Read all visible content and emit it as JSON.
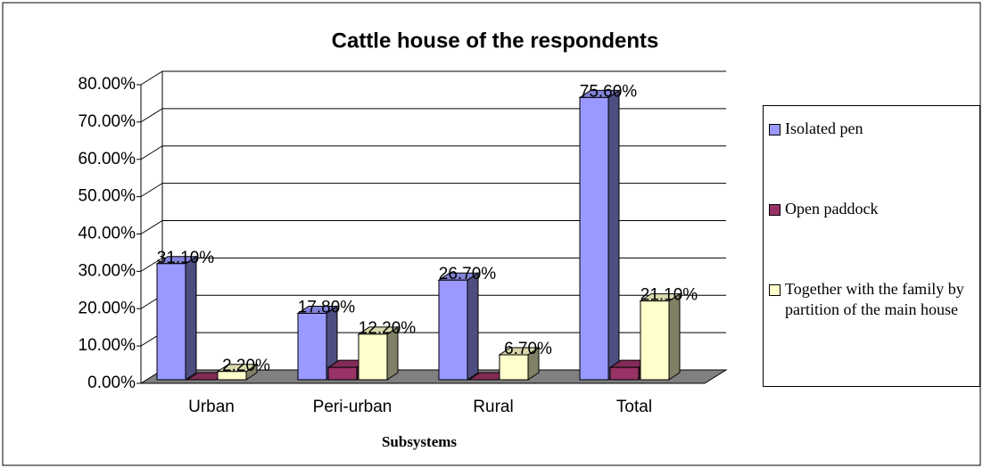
{
  "chart_data": {
    "type": "bar3d",
    "title": "Cattle house of the respondents",
    "x_label": "Subsystems",
    "categories": [
      "Urban",
      "Peri-urban",
      "Rural",
      "Total"
    ],
    "series": [
      {
        "name": "Isolated pen",
        "color": "#9999ff",
        "values": [
          31.1,
          17.8,
          26.7,
          75.6
        ],
        "value_labels": [
          "31.10%",
          "17.80%",
          "26.70%",
          "75.60%"
        ]
      },
      {
        "name": "Open paddock",
        "color": "#993366",
        "values": [
          0,
          3.3,
          0,
          3.3
        ]
      },
      {
        "name": "Together with the family by partition of the main house",
        "color": "#ffffcc",
        "values": [
          2.2,
          12.2,
          6.7,
          21.1
        ],
        "value_labels": [
          "2.20%",
          "12.20%",
          "6.70%",
          "21.10%"
        ]
      }
    ],
    "ylim": [
      0,
      80
    ],
    "yticks": [
      {
        "value": 0,
        "label": "0.00%"
      },
      {
        "value": 10,
        "label": "10.00%"
      },
      {
        "value": 20,
        "label": "20.00%"
      },
      {
        "value": 30,
        "label": "30.00%"
      },
      {
        "value": 40,
        "label": "40.00%"
      },
      {
        "value": 50,
        "label": "50.00%"
      },
      {
        "value": 60,
        "label": "60.00%"
      },
      {
        "value": 70,
        "label": "70.00%"
      },
      {
        "value": 80,
        "label": "80.00%"
      }
    ],
    "grid": true,
    "legend": "right"
  }
}
